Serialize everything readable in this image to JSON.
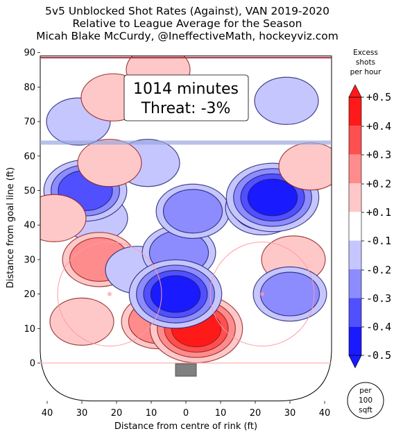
{
  "chart_data": {
    "type": "heatmap",
    "title_lines": [
      "5v5 Unblocked Shot Rates (Against), VAN 2019-2020",
      "Relative to League Average for the Season",
      "Micah Blake McCurdy, @IneffectiveMath, hockeyviz.com"
    ],
    "xlabel": "Distance from centre of rink (ft)",
    "ylabel": "Distance from goal line (ft)",
    "x_ticks": [
      "40",
      "30",
      "20",
      "10",
      "0",
      "10",
      "20",
      "30",
      "40"
    ],
    "y_ticks": [
      0,
      10,
      20,
      30,
      40,
      50,
      60,
      70,
      80,
      90
    ],
    "xlim": [
      -42,
      42
    ],
    "ylim": [
      -11,
      90
    ],
    "annotation": {
      "line1": "1014 minutes",
      "line2": "Threat: -3%"
    },
    "colorbar": {
      "title_lines": [
        "Excess",
        "shots",
        "per hour"
      ],
      "ticks": [
        "+0.5",
        "+0.4",
        "+0.3",
        "+0.2",
        "+0.1",
        "-0.1",
        "-0.2",
        "-0.3",
        "-0.4",
        "-0.5"
      ],
      "levels": [
        {
          "from": 0.4,
          "to": 0.5,
          "color": "#ff1a1a"
        },
        {
          "from": 0.3,
          "to": 0.4,
          "color": "#ff5050"
        },
        {
          "from": 0.2,
          "to": 0.3,
          "color": "#ff8c8c"
        },
        {
          "from": 0.1,
          "to": 0.2,
          "color": "#ffc8c8"
        },
        {
          "from": -0.1,
          "to": 0.1,
          "color": "#ffffff"
        },
        {
          "from": -0.2,
          "to": -0.1,
          "color": "#c6c6ff"
        },
        {
          "from": -0.3,
          "to": -0.2,
          "color": "#8c8cff"
        },
        {
          "from": -0.4,
          "to": -0.3,
          "color": "#5050ff"
        },
        {
          "from": -0.5,
          "to": -0.4,
          "color": "#1a1aff"
        }
      ]
    },
    "scale_badge": [
      "per",
      "100",
      "sqft"
    ],
    "regions": [
      {
        "x": -26,
        "y": 42,
        "value": -0.15
      },
      {
        "x": -29,
        "y": 50,
        "value": -0.35
      },
      {
        "x": -30,
        "y": 12,
        "value": 0.15
      },
      {
        "x": -25,
        "y": 30,
        "value": 0.25
      },
      {
        "x": -14,
        "y": 27,
        "value": -0.15
      },
      {
        "x": -8,
        "y": 12,
        "value": 0.2
      },
      {
        "x": 3,
        "y": 10,
        "value": 0.45
      },
      {
        "x": -2,
        "y": 32,
        "value": -0.25
      },
      {
        "x": -3,
        "y": 20,
        "value": -0.45
      },
      {
        "x": 2,
        "y": 44,
        "value": -0.2
      },
      {
        "x": 22,
        "y": 45,
        "value": -0.2
      },
      {
        "x": 25,
        "y": 48,
        "value": -0.4
      },
      {
        "x": 31,
        "y": 30,
        "value": 0.15
      },
      {
        "x": 30,
        "y": 20,
        "value": -0.2
      },
      {
        "x": 36,
        "y": 57,
        "value": 0.15
      },
      {
        "x": -38,
        "y": 42,
        "value": 0.15
      },
      {
        "x": -11,
        "y": 58,
        "value": -0.15
      },
      {
        "x": 29,
        "y": 76,
        "value": -0.15
      },
      {
        "x": -22,
        "y": 58,
        "value": 0.15
      },
      {
        "x": -31,
        "y": 70,
        "value": -0.15
      },
      {
        "x": -21,
        "y": 77,
        "value": 0.15
      },
      {
        "x": -8,
        "y": 85,
        "value": 0.15
      }
    ]
  }
}
